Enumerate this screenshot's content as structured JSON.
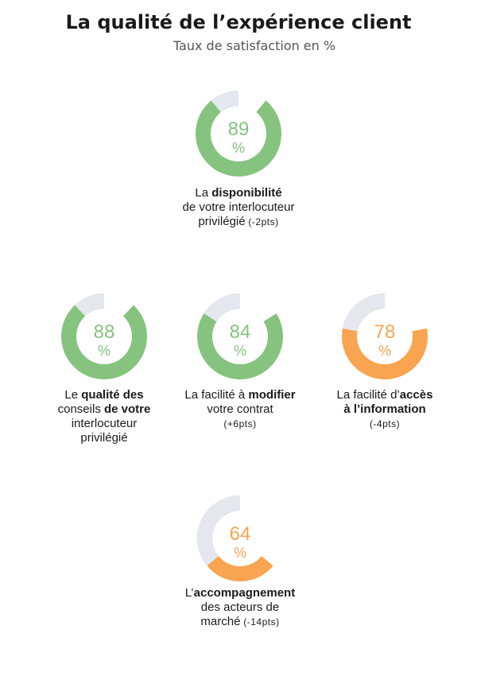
{
  "header": {
    "title": "La qualité de l’expérience client",
    "subtitle": "Taux de satisfaction en %"
  },
  "colors": {
    "green": "#86c37f",
    "orange": "#f9a450",
    "track": "#e4e7ee"
  },
  "chart_data": {
    "type": "donut",
    "unit": "%",
    "items": [
      {
        "value": 89,
        "color": "green",
        "caption_lines": [
          [
            "La ",
            "disponibilité"
          ],
          [
            "de votre interlocuteur"
          ],
          [
            "privilégié"
          ]
        ],
        "change": "(-2pts)"
      },
      {
        "value": 88,
        "color": "green",
        "caption_lines": [
          [
            "Le ",
            "qualité des"
          ],
          [
            "conseils",
            " de votre"
          ],
          [
            "interlocuteur"
          ],
          [
            "privilégié"
          ]
        ],
        "change": ""
      },
      {
        "value": 84,
        "color": "green",
        "caption_lines": [
          [
            "La facilité à ",
            "modifier"
          ],
          [
            "votre contrat"
          ]
        ],
        "change": "(+6pts)"
      },
      {
        "value": 78,
        "color": "orange",
        "caption_lines": [
          [
            "La facilité d’",
            "accès"
          ],
          [
            "",
            "à l’information"
          ]
        ],
        "change": "(-4pts)"
      },
      {
        "value": 64,
        "color": "orange",
        "caption_lines": [
          [
            "L’",
            "accompagnement"
          ],
          [
            "des acteurs de"
          ],
          [
            "marché"
          ]
        ],
        "change": "(-14pts)"
      }
    ]
  }
}
